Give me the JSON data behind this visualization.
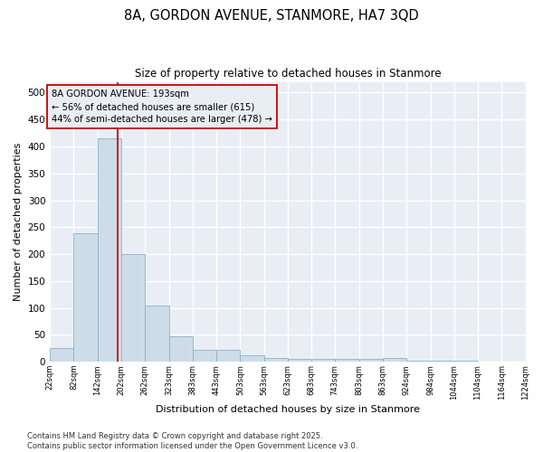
{
  "title_line1": "8A, GORDON AVENUE, STANMORE, HA7 3QD",
  "title_line2": "Size of property relative to detached houses in Stanmore",
  "xlabel": "Distribution of detached houses by size in Stanmore",
  "ylabel": "Number of detached properties",
  "bin_edges": [
    22,
    82,
    142,
    202,
    262,
    323,
    383,
    443,
    503,
    563,
    623,
    683,
    743,
    803,
    863,
    924,
    984,
    1044,
    1104,
    1164,
    1224
  ],
  "bar_heights": [
    25,
    238,
    415,
    200,
    105,
    48,
    22,
    22,
    12,
    7,
    5,
    5,
    5,
    5,
    7,
    2,
    2,
    2,
    0,
    0,
    3
  ],
  "bar_color": "#cddce8",
  "bar_edge_color": "#8ab4cc",
  "property_value": 193,
  "annotation_line1": "8A GORDON AVENUE: 193sqm",
  "annotation_line2": "← 56% of detached houses are smaller (615)",
  "annotation_line3": "44% of semi-detached houses are larger (478) →",
  "vline_color": "#cc0000",
  "annotation_box_edge": "#cc0000",
  "plot_bg_color": "#e8eef4",
  "fig_bg_color": "#ffffff",
  "grid_color": "#ffffff",
  "footer_line1": "Contains HM Land Registry data © Crown copyright and database right 2025.",
  "footer_line2": "Contains public sector information licensed under the Open Government Licence v3.0.",
  "ylim": [
    0,
    520
  ],
  "yticks": [
    0,
    50,
    100,
    150,
    200,
    250,
    300,
    350,
    400,
    450,
    500
  ]
}
